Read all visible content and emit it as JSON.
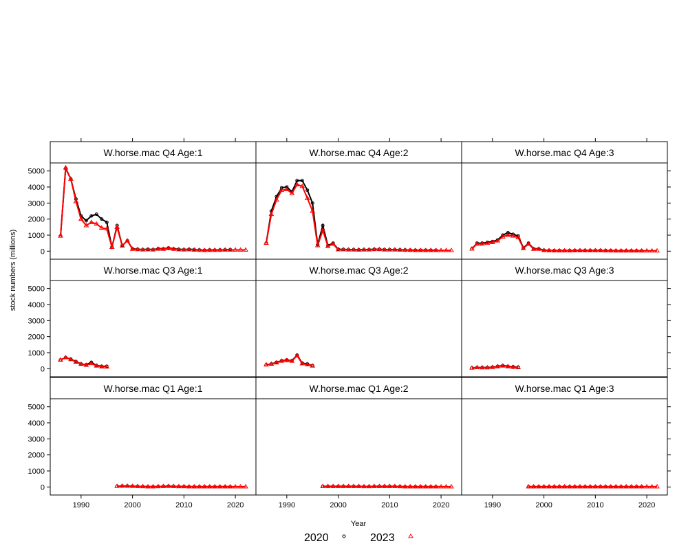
{
  "chart_data": {
    "type": "line",
    "xlabel": "Year",
    "ylabel": "stock numbers (millions)",
    "xlim": [
      1984,
      2024
    ],
    "ylim": [
      -500,
      5500
    ],
    "xticks": [
      1990,
      2000,
      2010,
      2020
    ],
    "yticks": [
      0,
      1000,
      2000,
      3000,
      4000,
      5000
    ],
    "grid": false,
    "legend": {
      "position": "bottom",
      "entries": [
        {
          "name": "2020",
          "color": "#000000",
          "marker": "circle"
        },
        {
          "name": "2023",
          "color": "#ff0000",
          "marker": "triangle"
        }
      ]
    },
    "panels": [
      {
        "title": "W.horse.mac Q4 Age:1",
        "series": [
          {
            "name": "2020",
            "x": [
              1986,
              1987,
              1988,
              1989,
              1990,
              1991,
              1992,
              1993,
              1994,
              1995,
              1996,
              1997,
              1998,
              1999,
              2000,
              2001,
              2002,
              2003,
              2004,
              2005,
              2006,
              2007,
              2008,
              2009,
              2010,
              2011,
              2012,
              2013,
              2014,
              2015,
              2016,
              2017,
              2018,
              2019
            ],
            "y": [
              950,
              5150,
              4500,
              3250,
              2200,
              1900,
              2200,
              2300,
              2000,
              1800,
              250,
              1600,
              350,
              650,
              150,
              120,
              100,
              120,
              100,
              160,
              150,
              200,
              150,
              120,
              100,
              120,
              100,
              80,
              60,
              80,
              70,
              80,
              90,
              100
            ]
          },
          {
            "name": "2023",
            "x": [
              1986,
              1987,
              1988,
              1989,
              1990,
              1991,
              1992,
              1993,
              1994,
              1995,
              1996,
              1997,
              1998,
              1999,
              2000,
              2001,
              2002,
              2003,
              2004,
              2005,
              2006,
              2007,
              2008,
              2009,
              2010,
              2011,
              2012,
              2013,
              2014,
              2015,
              2016,
              2017,
              2018,
              2019,
              2020,
              2021,
              2022
            ],
            "y": [
              950,
              5200,
              4500,
              3100,
              2000,
              1600,
              1800,
              1700,
              1450,
              1400,
              250,
              1500,
              330,
              650,
              130,
              110,
              90,
              100,
              90,
              140,
              130,
              170,
              130,
              100,
              90,
              100,
              80,
              70,
              50,
              60,
              60,
              70,
              80,
              80,
              80,
              80,
              80
            ]
          }
        ]
      },
      {
        "title": "W.horse.mac Q4 Age:2",
        "series": [
          {
            "name": "2020",
            "x": [
              1986,
              1987,
              1988,
              1989,
              1990,
              1991,
              1992,
              1993,
              1994,
              1995,
              1996,
              1997,
              1998,
              1999,
              2000,
              2001,
              2002,
              2003,
              2004,
              2005,
              2006,
              2007,
              2008,
              2009,
              2010,
              2011,
              2012,
              2013,
              2014,
              2015,
              2016,
              2017,
              2018,
              2019
            ],
            "y": [
              500,
              2500,
              3400,
              3950,
              4000,
              3700,
              4400,
              4400,
              3800,
              3000,
              400,
              1600,
              350,
              500,
              120,
              110,
              100,
              100,
              90,
              100,
              100,
              120,
              120,
              100,
              100,
              100,
              90,
              80,
              70,
              60,
              60,
              60,
              60,
              60
            ]
          },
          {
            "name": "2023",
            "x": [
              1986,
              1987,
              1988,
              1989,
              1990,
              1991,
              1992,
              1993,
              1994,
              1995,
              1996,
              1997,
              1998,
              1999,
              2000,
              2001,
              2002,
              2003,
              2004,
              2005,
              2006,
              2007,
              2008,
              2009,
              2010,
              2011,
              2012,
              2013,
              2014,
              2015,
              2016,
              2017,
              2018,
              2019,
              2020,
              2021,
              2022
            ],
            "y": [
              500,
              2300,
              3200,
              3800,
              3850,
              3600,
              4150,
              4050,
              3300,
              2500,
              350,
              1300,
              300,
              450,
              100,
              100,
              90,
              90,
              80,
              90,
              90,
              110,
              110,
              90,
              90,
              90,
              80,
              70,
              60,
              50,
              50,
              50,
              50,
              50,
              50,
              50,
              50
            ]
          }
        ]
      },
      {
        "title": "W.horse.mac Q4 Age:3",
        "series": [
          {
            "name": "2020",
            "x": [
              1986,
              1987,
              1988,
              1989,
              1990,
              1991,
              1992,
              1993,
              1994,
              1995,
              1996,
              1997,
              1998,
              1999,
              2000,
              2001,
              2002,
              2003,
              2004,
              2005,
              2006,
              2007,
              2008,
              2009,
              2010,
              2011,
              2012,
              2013,
              2014,
              2015,
              2016,
              2017,
              2018,
              2019
            ],
            "y": [
              150,
              500,
              500,
              550,
              600,
              700,
              1000,
              1150,
              1050,
              950,
              200,
              500,
              150,
              150,
              60,
              50,
              40,
              40,
              40,
              40,
              50,
              50,
              50,
              50,
              50,
              50,
              40,
              40,
              30,
              30,
              30,
              30,
              30,
              30
            ]
          },
          {
            "name": "2023",
            "x": [
              1986,
              1987,
              1988,
              1989,
              1990,
              1991,
              1992,
              1993,
              1994,
              1995,
              1996,
              1997,
              1998,
              1999,
              2000,
              2001,
              2002,
              2003,
              2004,
              2005,
              2006,
              2007,
              2008,
              2009,
              2010,
              2011,
              2012,
              2013,
              2014,
              2015,
              2016,
              2017,
              2018,
              2019,
              2020,
              2021,
              2022
            ],
            "y": [
              150,
              450,
              450,
              500,
              550,
              650,
              900,
              1000,
              950,
              850,
              180,
              450,
              130,
              130,
              50,
              40,
              30,
              30,
              30,
              30,
              40,
              40,
              40,
              40,
              40,
              40,
              30,
              30,
              25,
              25,
              25,
              25,
              25,
              25,
              25,
              25,
              25
            ]
          }
        ]
      },
      {
        "title": "W.horse.mac Q3 Age:1",
        "series": [
          {
            "name": "2020",
            "x": [
              1986,
              1987,
              1988,
              1989,
              1990,
              1991,
              1992,
              1993,
              1994,
              1995
            ],
            "y": [
              550,
              700,
              600,
              450,
              300,
              250,
              400,
              200,
              150,
              150
            ]
          },
          {
            "name": "2023",
            "x": [
              1986,
              1987,
              1988,
              1989,
              1990,
              1991,
              1992,
              1993,
              1994,
              1995
            ],
            "y": [
              550,
              700,
              580,
              420,
              290,
              230,
              330,
              180,
              130,
              120
            ]
          }
        ]
      },
      {
        "title": "W.horse.mac Q3 Age:2",
        "series": [
          {
            "name": "2020",
            "x": [
              1986,
              1987,
              1988,
              1989,
              1990,
              1991,
              1992,
              1993,
              1994,
              1995
            ],
            "y": [
              250,
              300,
              400,
              500,
              550,
              500,
              850,
              350,
              300,
              200
            ]
          },
          {
            "name": "2023",
            "x": [
              1986,
              1987,
              1988,
              1989,
              1990,
              1991,
              1992,
              1993,
              1994,
              1995
            ],
            "y": [
              250,
              300,
              380,
              480,
              520,
              480,
              820,
              320,
              270,
              180
            ]
          }
        ]
      },
      {
        "title": "W.horse.mac Q3 Age:3",
        "series": [
          {
            "name": "2020",
            "x": [
              1986,
              1987,
              1988,
              1989,
              1990,
              1991,
              1992,
              1993,
              1994,
              1995
            ],
            "y": [
              50,
              80,
              80,
              80,
              100,
              150,
              200,
              150,
              120,
              100
            ]
          },
          {
            "name": "2023",
            "x": [
              1986,
              1987,
              1988,
              1989,
              1990,
              1991,
              1992,
              1993,
              1994,
              1995
            ],
            "y": [
              50,
              80,
              70,
              70,
              90,
              140,
              180,
              140,
              100,
              80
            ]
          }
        ]
      },
      {
        "title": "W.horse.mac Q1 Age:1",
        "series": [
          {
            "name": "2020",
            "x": [
              1997,
              1998,
              1999,
              2000,
              2001,
              2002,
              2003,
              2004,
              2005,
              2006,
              2007,
              2008,
              2009,
              2010,
              2011,
              2012,
              2013,
              2014,
              2015,
              2016,
              2017,
              2018,
              2019
            ],
            "y": [
              50,
              60,
              60,
              50,
              40,
              30,
              20,
              20,
              30,
              40,
              50,
              40,
              30,
              30,
              20,
              20,
              20,
              20,
              20,
              20,
              20,
              20,
              20
            ]
          },
          {
            "name": "2023",
            "x": [
              1997,
              1998,
              1999,
              2000,
              2001,
              2002,
              2003,
              2004,
              2005,
              2006,
              2007,
              2008,
              2009,
              2010,
              2011,
              2012,
              2013,
              2014,
              2015,
              2016,
              2017,
              2018,
              2019,
              2020,
              2021,
              2022
            ],
            "y": [
              50,
              60,
              60,
              50,
              40,
              30,
              20,
              20,
              30,
              40,
              50,
              40,
              30,
              30,
              20,
              20,
              20,
              20,
              20,
              20,
              20,
              20,
              20,
              20,
              20,
              20
            ]
          }
        ]
      },
      {
        "title": "W.horse.mac Q1 Age:2",
        "series": [
          {
            "name": "2020",
            "x": [
              1997,
              1998,
              1999,
              2000,
              2001,
              2002,
              2003,
              2004,
              2005,
              2006,
              2007,
              2008,
              2009,
              2010,
              2011,
              2012,
              2013,
              2014,
              2015,
              2016,
              2017,
              2018,
              2019
            ],
            "y": [
              40,
              40,
              40,
              40,
              40,
              40,
              40,
              40,
              30,
              30,
              40,
              40,
              40,
              40,
              40,
              30,
              20,
              20,
              20,
              20,
              20,
              20,
              20
            ]
          },
          {
            "name": "2023",
            "x": [
              1997,
              1998,
              1999,
              2000,
              2001,
              2002,
              2003,
              2004,
              2005,
              2006,
              2007,
              2008,
              2009,
              2010,
              2011,
              2012,
              2013,
              2014,
              2015,
              2016,
              2017,
              2018,
              2019,
              2020,
              2021,
              2022
            ],
            "y": [
              40,
              40,
              40,
              40,
              40,
              40,
              40,
              40,
              30,
              30,
              40,
              40,
              40,
              40,
              40,
              30,
              20,
              20,
              20,
              20,
              20,
              20,
              20,
              20,
              20,
              20
            ]
          }
        ]
      },
      {
        "title": "W.horse.mac Q1 Age:3",
        "series": [
          {
            "name": "2020",
            "x": [
              1997,
              1998,
              1999,
              2000,
              2001,
              2002,
              2003,
              2004,
              2005,
              2006,
              2007,
              2008,
              2009,
              2010,
              2011,
              2012,
              2013,
              2014,
              2015,
              2016,
              2017,
              2018,
              2019
            ],
            "y": [
              20,
              20,
              20,
              20,
              20,
              20,
              20,
              20,
              20,
              20,
              20,
              20,
              20,
              20,
              20,
              20,
              20,
              20,
              20,
              20,
              20,
              20,
              20
            ]
          },
          {
            "name": "2023",
            "x": [
              1997,
              1998,
              1999,
              2000,
              2001,
              2002,
              2003,
              2004,
              2005,
              2006,
              2007,
              2008,
              2009,
              2010,
              2011,
              2012,
              2013,
              2014,
              2015,
              2016,
              2017,
              2018,
              2019,
              2020,
              2021,
              2022
            ],
            "y": [
              20,
              20,
              20,
              20,
              20,
              20,
              20,
              20,
              20,
              20,
              20,
              20,
              20,
              20,
              20,
              20,
              20,
              20,
              20,
              20,
              20,
              20,
              20,
              20,
              20,
              20
            ]
          }
        ]
      }
    ]
  }
}
